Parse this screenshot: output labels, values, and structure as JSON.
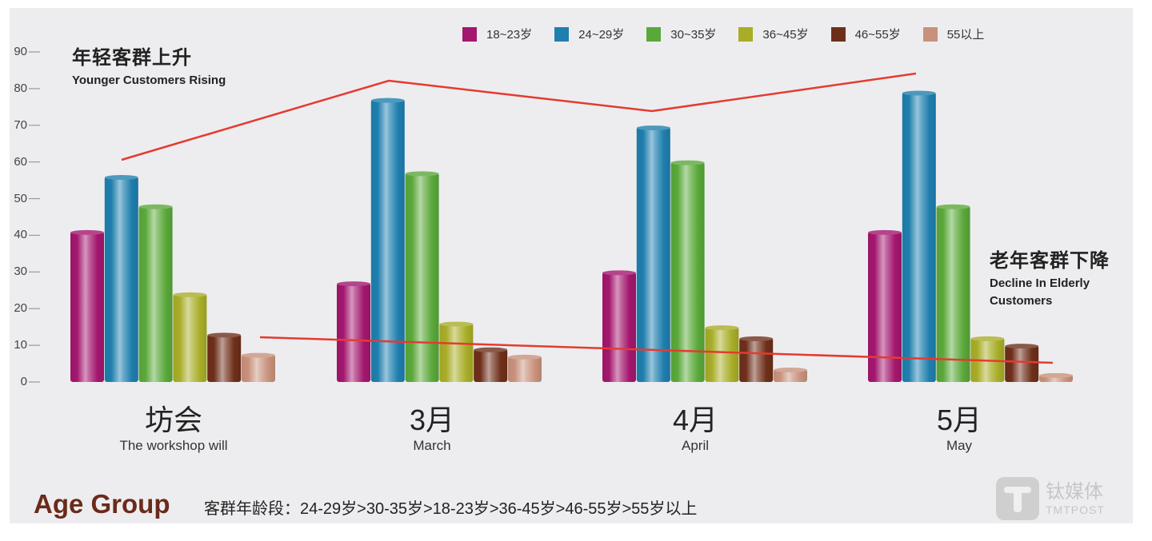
{
  "chart_data": {
    "type": "bar",
    "title": "年轻客群上升 / 老年客群下降",
    "xlabel": "",
    "ylabel": "",
    "ylim": [
      0,
      90
    ],
    "yticks": [
      0,
      10,
      20,
      30,
      40,
      50,
      60,
      70,
      80,
      90
    ],
    "grid": false,
    "legend_position": "top-right",
    "categories": [
      "坊会",
      "3月",
      "4月",
      "5月"
    ],
    "categories_en": [
      "The workshop will",
      "March",
      "April",
      "May"
    ],
    "series": [
      {
        "name": "18~23岁",
        "color": "#a3176e",
        "values": [
          41,
          27,
          30,
          41
        ]
      },
      {
        "name": "24~29岁",
        "color": "#1f7fae",
        "values": [
          56,
          77,
          69.5,
          79
        ]
      },
      {
        "name": "30~35岁",
        "color": "#5aa83a",
        "values": [
          48,
          57,
          60,
          48
        ]
      },
      {
        "name": "36~45岁",
        "color": "#a8ad28",
        "values": [
          24,
          16,
          15,
          12
        ]
      },
      {
        "name": "46~55岁",
        "color": "#6e2f1a",
        "values": [
          13,
          9,
          12,
          10
        ]
      },
      {
        "name": "55以上",
        "color": "#c8917c",
        "values": [
          7.5,
          7,
          3.5,
          2
        ]
      }
    ],
    "trend_lines": [
      {
        "name": "Younger Customers Rising",
        "color": "#e53a30",
        "points": [
          [
            152,
            200
          ],
          [
            486,
            101
          ],
          [
            815,
            139
          ],
          [
            1145,
            92
          ]
        ]
      },
      {
        "name": "Decline In Elderly Customers",
        "color": "#e53a30",
        "points": [
          [
            325,
            422
          ],
          [
            1316,
            454
          ]
        ]
      }
    ],
    "annotations": [
      {
        "cn": "年轻客群上升",
        "en": "Younger Customers Rising"
      },
      {
        "cn": "老年客群下降",
        "en": "Decline In Elderly Customers"
      }
    ]
  },
  "annotations": {
    "young_cn": "年轻客群上升",
    "young_en": "Younger Customers Rising",
    "old_cn": "老年客群下降",
    "old_en_line1": "Decline In Elderly",
    "old_en_line2": "Customers"
  },
  "footer": {
    "title": "Age Group",
    "ranking": "客群年龄段：24-29岁>30-35岁>18-23岁>36-45岁>46-55岁>55岁以上"
  },
  "brand": {
    "cn": "钛媒体",
    "en": "TMTPOST"
  }
}
